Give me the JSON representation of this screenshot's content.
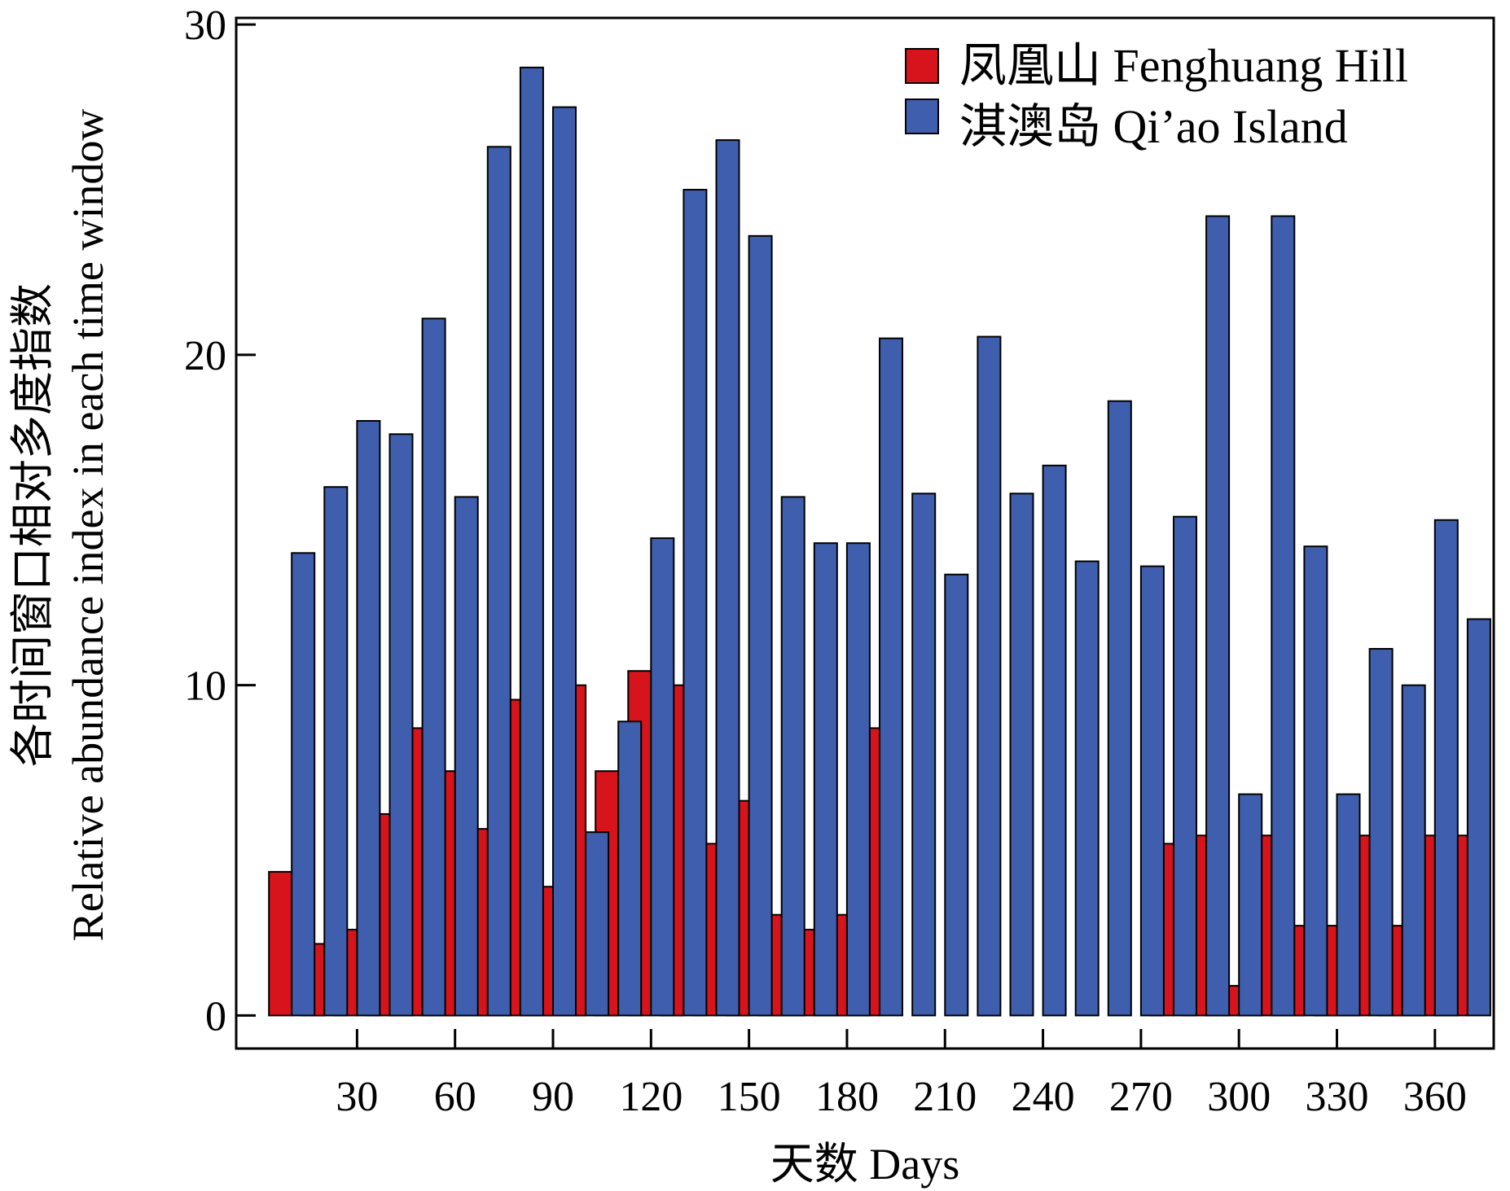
{
  "chart_data": {
    "type": "bar",
    "x": [
      10,
      20,
      30,
      40,
      50,
      60,
      70,
      80,
      90,
      100,
      110,
      120,
      130,
      140,
      150,
      160,
      170,
      180,
      190,
      200,
      210,
      220,
      230,
      240,
      250,
      260,
      270,
      280,
      290,
      300,
      310,
      320,
      330,
      340,
      350,
      360,
      370
    ],
    "series": [
      {
        "name": "凤凰山 Fenghuang Hill",
        "color": "#d7141c",
        "values": [
          4.35,
          2.17,
          2.6,
          6.1,
          8.7,
          7.4,
          5.65,
          9.56,
          3.9,
          10.0,
          7.4,
          10.43,
          10.0,
          5.2,
          6.5,
          3.05,
          2.6,
          3.05,
          8.7,
          0,
          0,
          0,
          0,
          0,
          0,
          0,
          0,
          5.2,
          5.45,
          0.9,
          5.45,
          2.72,
          2.72,
          5.45,
          2.72,
          5.45,
          5.45
        ]
      },
      {
        "name": "淇澳岛 Qi’ao Island",
        "color": "#3f5fae",
        "values": [
          14.0,
          16.0,
          18.0,
          17.6,
          21.1,
          15.7,
          26.3,
          28.7,
          27.5,
          5.55,
          8.9,
          14.45,
          25.0,
          26.5,
          23.6,
          15.7,
          14.3,
          14.3,
          20.5,
          15.8,
          13.35,
          20.55,
          15.8,
          16.65,
          13.75,
          18.6,
          13.6,
          15.1,
          24.2,
          6.7,
          24.2,
          14.2,
          6.7,
          11.1,
          10.0,
          15.0,
          12.0
        ]
      }
    ],
    "xticks": [
      30,
      60,
      90,
      120,
      150,
      180,
      210,
      240,
      270,
      300,
      330,
      360
    ],
    "yticks": [
      0,
      10,
      20,
      30
    ],
    "xlabel": "天数 Days",
    "ylabel_cn": "各时间窗口相对多度指数",
    "ylabel_en": "Relative abundance index in each time window",
    "xlim": [
      -7,
      378
    ],
    "ylim": [
      -1,
      30.2
    ],
    "grid": false,
    "legend_position": "top-right"
  }
}
